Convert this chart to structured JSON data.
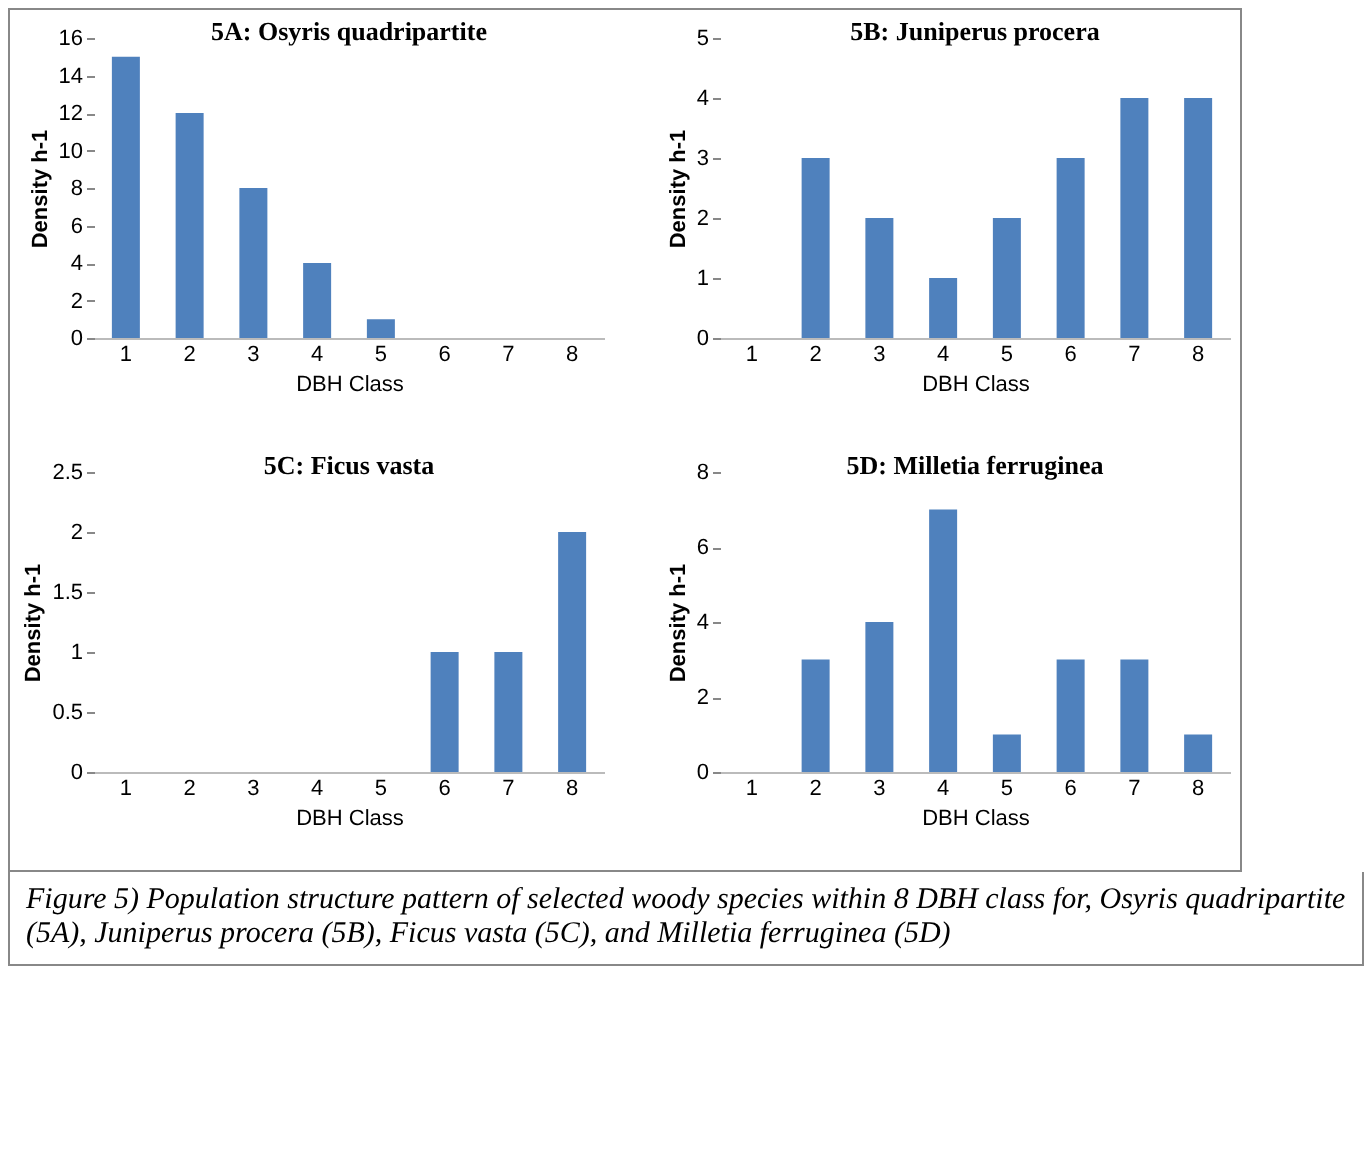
{
  "chart_data": [
    {
      "type": "bar",
      "title": "5A: Osyris quadripartite",
      "xlabel": "DBH Class",
      "ylabel": "Density h-1",
      "categories": [
        "1",
        "2",
        "3",
        "4",
        "5",
        "6",
        "7",
        "8"
      ],
      "values": [
        15,
        12,
        8,
        4,
        1,
        0,
        0,
        0
      ],
      "color": "#4f81bd",
      "ylim": [
        0,
        16
      ],
      "yticks": [
        0,
        2,
        4,
        6,
        8,
        10,
        12,
        14,
        16
      ],
      "grid": false
    },
    {
      "type": "bar",
      "title": "5B: Juniperus procera",
      "xlabel": "DBH Class",
      "ylabel": "Density h-1",
      "categories": [
        "1",
        "2",
        "3",
        "4",
        "5",
        "6",
        "7",
        "8"
      ],
      "values": [
        0,
        3,
        2,
        1,
        2,
        3,
        4,
        4
      ],
      "color": "#4f81bd",
      "ylim": [
        0,
        5
      ],
      "yticks": [
        0,
        1,
        2,
        3,
        4,
        5
      ],
      "grid": false
    },
    {
      "type": "bar",
      "title": "5C: Ficus vasta",
      "xlabel": "DBH Class",
      "ylabel": "Density h-1",
      "categories": [
        "1",
        "2",
        "3",
        "4",
        "5",
        "6",
        "7",
        "8"
      ],
      "values": [
        0,
        0,
        0,
        0,
        0,
        1,
        1,
        2
      ],
      "color": "#4f81bd",
      "ylim": [
        0,
        2.5
      ],
      "yticks": [
        0,
        0.5,
        1,
        1.5,
        2,
        2.5
      ],
      "grid": false
    },
    {
      "type": "bar",
      "title": "5D: Milletia ferruginea",
      "xlabel": "DBH Class",
      "ylabel": "Density h-1",
      "categories": [
        "1",
        "2",
        "3",
        "4",
        "5",
        "6",
        "7",
        "8"
      ],
      "values": [
        0,
        3,
        4,
        7,
        1,
        3,
        3,
        1
      ],
      "color": "#4f81bd",
      "ylim": [
        0,
        8
      ],
      "yticks": [
        0,
        2,
        4,
        6,
        8
      ],
      "grid": false,
      "annotations": [
        "Figure 5) Population structure pattern of selected woody species within 8 DBH class for, Osyris quadripartite (5A), Juniperus procera (5B), Ficus vasta (5C), and Milletia ferruginea (5D)"
      ]
    }
  ]
}
